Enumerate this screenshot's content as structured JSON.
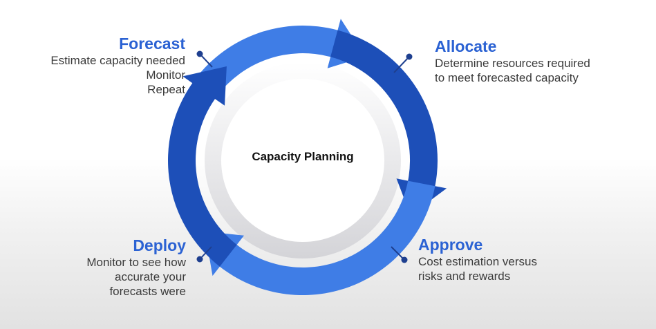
{
  "center": {
    "label": "Capacity Planning"
  },
  "colors": {
    "accent": "#2b62d3",
    "arc_light": "#3f7de6",
    "arc_dark": "#1d4fb8",
    "inner_ring": "#e6e6e9",
    "connector": "#1e3f8f"
  },
  "steps": [
    {
      "title": "Forecast",
      "lines": [
        "Estimate capacity needed",
        "Monitor",
        "Repeat"
      ]
    },
    {
      "title": "Allocate",
      "lines": [
        "Determine resources required",
        "to meet forecasted capacity"
      ]
    },
    {
      "title": "Approve",
      "lines": [
        "Cost estimation versus",
        "risks and rewards"
      ]
    },
    {
      "title": "Deploy",
      "lines": [
        "Monitor to see how",
        "accurate your",
        "forecasts were"
      ]
    }
  ]
}
